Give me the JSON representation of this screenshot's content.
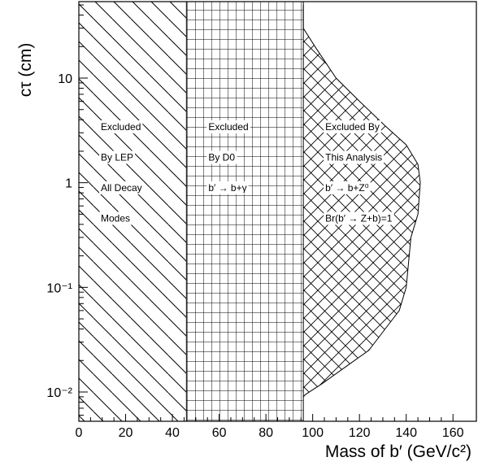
{
  "chart_data": {
    "type": "area",
    "x_axis": {
      "label": "Mass of b′ (GeV/c²)",
      "range": [
        0,
        170
      ],
      "ticks": [
        0,
        20,
        40,
        60,
        80,
        100,
        120,
        140,
        160
      ],
      "tick_labels": [
        "0",
        "20",
        "40",
        "60",
        "80",
        "100",
        "120",
        "140",
        "160"
      ]
    },
    "y_axis": {
      "label": "cτ (cm)",
      "scale": "log",
      "range": [
        0.005,
        50
      ],
      "ticks": [
        0.01,
        0.1,
        1,
        10
      ],
      "tick_labels": [
        "10⁻²",
        "10⁻¹",
        "1",
        "10"
      ]
    },
    "grid": false,
    "regions": [
      {
        "name": "LEP",
        "pattern": "diagonal-hatch",
        "x_range": [
          0,
          46
        ],
        "annotation": [
          "Excluded",
          "By LEP",
          "All Decay",
          "Modes"
        ]
      },
      {
        "name": "D0",
        "pattern": "grid-hatch",
        "x_range": [
          46,
          96
        ],
        "annotation": [
          "Excluded",
          "By D0",
          "b′ → b+γ"
        ]
      },
      {
        "name": "This Analysis",
        "pattern": "cross-hatch",
        "x_range": [
          96,
          146
        ],
        "annotation": [
          "Excluded By",
          "This Analysis",
          "b′ → b+Z⁰",
          "Br(b′ → Z+b)=1"
        ],
        "boundary": [
          {
            "x": 96,
            "ct": 50
          },
          {
            "x": 96,
            "ct": 30
          },
          {
            "x": 101,
            "ct": 20
          },
          {
            "x": 110,
            "ct": 10
          },
          {
            "x": 120,
            "ct": 6
          },
          {
            "x": 131,
            "ct": 3.5
          },
          {
            "x": 140,
            "ct": 2.3
          },
          {
            "x": 145,
            "ct": 1.5
          },
          {
            "x": 146,
            "ct": 1
          },
          {
            "x": 145,
            "ct": 0.5
          },
          {
            "x": 142,
            "ct": 0.3
          },
          {
            "x": 140,
            "ct": 0.1
          },
          {
            "x": 137,
            "ct": 0.06
          },
          {
            "x": 131,
            "ct": 0.04
          },
          {
            "x": 124,
            "ct": 0.025
          },
          {
            "x": 115,
            "ct": 0.018
          },
          {
            "x": 104,
            "ct": 0.012
          },
          {
            "x": 97,
            "ct": 0.0095
          },
          {
            "x": 96,
            "ct": 0.009
          }
        ]
      }
    ]
  }
}
